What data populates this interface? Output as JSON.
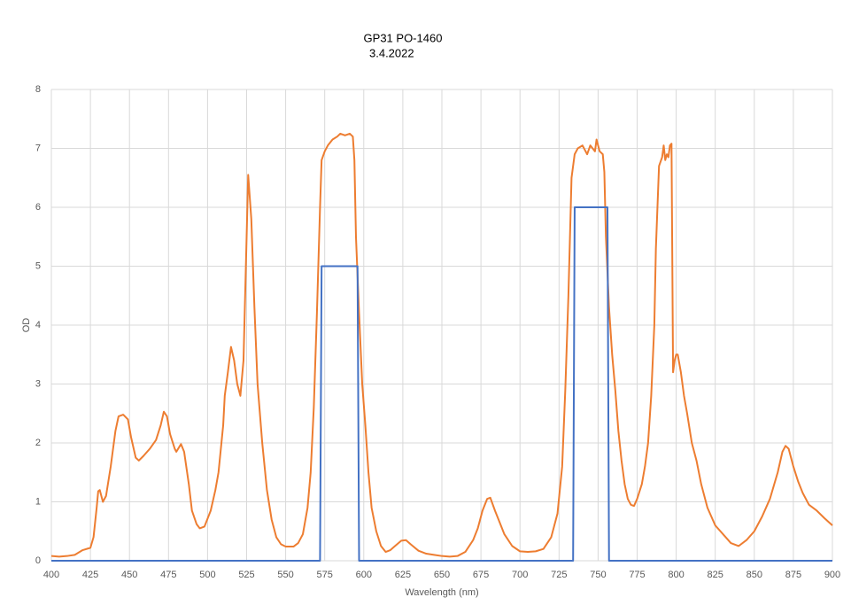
{
  "chart_data": {
    "type": "line",
    "title": "GP31  PO-1460",
    "subtitle": "3.4.2022",
    "x_label": "Wavelength (nm)",
    "y_label": "OD",
    "xlim": [
      400,
      900
    ],
    "xticks": [
      400,
      425,
      450,
      475,
      500,
      525,
      550,
      575,
      600,
      625,
      650,
      675,
      700,
      725,
      750,
      775,
      800,
      825,
      850,
      875,
      900
    ],
    "ylim": [
      0,
      8
    ],
    "yticks": [
      0,
      1,
      2,
      3,
      4,
      5,
      6,
      7,
      8
    ],
    "grid": true,
    "series": [
      {
        "color": "#ed7d31",
        "x": [
          400,
          405,
          410,
          415,
          420,
          425,
          427,
          429,
          430,
          431,
          433,
          435,
          438,
          441,
          443,
          446,
          449,
          451,
          454,
          456,
          459,
          463,
          467,
          470,
          472,
          474,
          476,
          479,
          480,
          483,
          485,
          488,
          490,
          493,
          495,
          498,
          502,
          505,
          507,
          510,
          511,
          513,
          515,
          517,
          519,
          521,
          523,
          525,
          526,
          528,
          530,
          532,
          535,
          538,
          541,
          544,
          547,
          550,
          555,
          558,
          561,
          564,
          566,
          568,
          570,
          572,
          573,
          575,
          577,
          580,
          583,
          585,
          588,
          591,
          593,
          594,
          595,
          597,
          599,
          601,
          603,
          605,
          608,
          611,
          614,
          617,
          620,
          624,
          627,
          630,
          635,
          640,
          645,
          650,
          655,
          660,
          665,
          670,
          673,
          676,
          679,
          681,
          684,
          687,
          690,
          695,
          700,
          705,
          710,
          715,
          720,
          724,
          727,
          729,
          731,
          732,
          733,
          735,
          737,
          740,
          743,
          745,
          748,
          749,
          751,
          753,
          754,
          755,
          757,
          759,
          761,
          763,
          765,
          767,
          769,
          771,
          773,
          775,
          778,
          780,
          782,
          784,
          786,
          787,
          789,
          791,
          792,
          793,
          794,
          795,
          796,
          797,
          798,
          799,
          800,
          801,
          803,
          805,
          807,
          810,
          813,
          816,
          820,
          825,
          830,
          835,
          840,
          845,
          850,
          855,
          860,
          865,
          868,
          870,
          872,
          875,
          878,
          881,
          885,
          890,
          895,
          900
        ],
        "values": [
          0.08,
          0.07,
          0.08,
          0.1,
          0.18,
          0.22,
          0.4,
          0.9,
          1.18,
          1.2,
          1.0,
          1.1,
          1.6,
          2.2,
          2.45,
          2.48,
          2.4,
          2.1,
          1.75,
          1.7,
          1.78,
          1.9,
          2.05,
          2.3,
          2.53,
          2.45,
          2.15,
          1.9,
          1.85,
          1.98,
          1.85,
          1.3,
          0.85,
          0.62,
          0.55,
          0.58,
          0.85,
          1.2,
          1.5,
          2.3,
          2.8,
          3.2,
          3.63,
          3.4,
          3.0,
          2.8,
          3.4,
          5.5,
          6.55,
          5.8,
          4.3,
          3.0,
          2.0,
          1.2,
          0.7,
          0.4,
          0.28,
          0.24,
          0.24,
          0.3,
          0.45,
          0.9,
          1.5,
          2.6,
          4.2,
          6.0,
          6.8,
          6.95,
          7.05,
          7.15,
          7.2,
          7.25,
          7.22,
          7.25,
          7.2,
          6.8,
          5.5,
          4.2,
          3.0,
          2.3,
          1.5,
          0.9,
          0.5,
          0.25,
          0.15,
          0.18,
          0.25,
          0.34,
          0.35,
          0.28,
          0.17,
          0.12,
          0.1,
          0.08,
          0.07,
          0.08,
          0.15,
          0.35,
          0.55,
          0.85,
          1.05,
          1.07,
          0.85,
          0.65,
          0.45,
          0.25,
          0.16,
          0.15,
          0.16,
          0.2,
          0.4,
          0.8,
          1.6,
          2.9,
          4.5,
          5.5,
          6.5,
          6.9,
          7.0,
          7.05,
          6.9,
          7.05,
          6.95,
          7.15,
          6.95,
          6.9,
          6.6,
          5.5,
          4.3,
          3.5,
          2.9,
          2.2,
          1.7,
          1.3,
          1.05,
          0.95,
          0.93,
          1.05,
          1.3,
          1.6,
          2.0,
          2.8,
          4.0,
          5.3,
          6.7,
          6.85,
          7.05,
          6.8,
          6.9,
          6.85,
          7.05,
          7.08,
          3.2,
          3.4,
          3.5,
          3.5,
          3.2,
          2.8,
          2.5,
          2.0,
          1.7,
          1.3,
          0.9,
          0.6,
          0.45,
          0.3,
          0.25,
          0.35,
          0.5,
          0.75,
          1.05,
          1.5,
          1.85,
          1.95,
          1.9,
          1.6,
          1.35,
          1.15,
          0.95,
          0.85,
          0.72,
          0.6
        ]
      },
      {
        "color": "#4472c4",
        "x": [
          400,
          572,
          573,
          596,
          597,
          734,
          735,
          756,
          757,
          900
        ],
        "values": [
          0,
          0,
          5,
          5,
          0,
          0,
          6,
          6,
          0,
          0
        ]
      }
    ]
  }
}
